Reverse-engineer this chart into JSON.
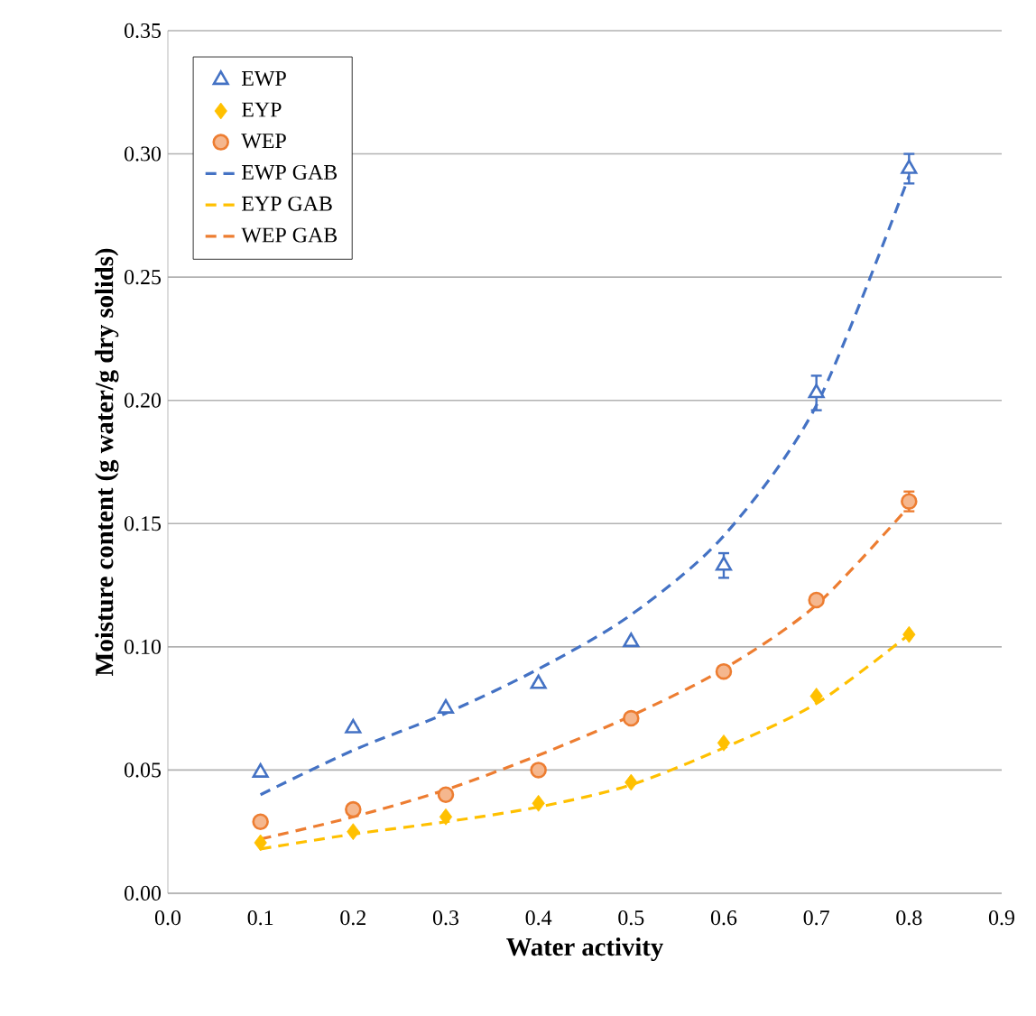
{
  "chart_data": {
    "type": "scatter",
    "xlabel": "Water activity",
    "ylabel": "Moisture content (g water/g dry solids)",
    "x": [
      0.1,
      0.2,
      0.3,
      0.4,
      0.5,
      0.6,
      0.7,
      0.8
    ],
    "xlim": [
      0,
      0.9
    ],
    "ylim": [
      0,
      0.35
    ],
    "xticks": [
      {
        "value": 0,
        "label": "0.0"
      },
      {
        "value": 0.1,
        "label": "0.1"
      },
      {
        "value": 0.2,
        "label": "0.2"
      },
      {
        "value": 0.3,
        "label": "0.3"
      },
      {
        "value": 0.4,
        "label": "0.4"
      },
      {
        "value": 0.5,
        "label": "0.5"
      },
      {
        "value": 0.6,
        "label": "0.6"
      },
      {
        "value": 0.7,
        "label": "0.7"
      },
      {
        "value": 0.8,
        "label": "0.8"
      },
      {
        "value": 0.9,
        "label": "0.9"
      }
    ],
    "yticks": [
      {
        "value": 0,
        "label": "0.00"
      },
      {
        "value": 0.05,
        "label": "0.05"
      },
      {
        "value": 0.1,
        "label": "0.10"
      },
      {
        "value": 0.15,
        "label": "0.15"
      },
      {
        "value": 0.2,
        "label": "0.20"
      },
      {
        "value": 0.25,
        "label": "0.25"
      },
      {
        "value": 0.3,
        "label": "0.30"
      },
      {
        "value": 0.35,
        "label": "0.35"
      }
    ],
    "grid": "y",
    "legend": "top left",
    "series": [
      {
        "name": "EWP",
        "marker": "triangle",
        "color": "#4472c4",
        "values": [
          0.049,
          0.067,
          0.075,
          0.085,
          0.102,
          0.133,
          0.203,
          0.294
        ],
        "errors": [
          null,
          null,
          null,
          null,
          null,
          0.005,
          0.007,
          0.006
        ]
      },
      {
        "name": "EYP",
        "marker": "diamond",
        "color": "#ffc000",
        "values": [
          0.0205,
          0.025,
          0.031,
          0.0365,
          0.045,
          0.061,
          0.08,
          0.105
        ]
      },
      {
        "name": "WEP",
        "marker": "circle",
        "color": "#ed7d31",
        "values": [
          0.029,
          0.034,
          0.04,
          0.05,
          0.071,
          0.09,
          0.119,
          0.159
        ],
        "errors": [
          null,
          null,
          null,
          null,
          null,
          null,
          null,
          0.004
        ]
      },
      {
        "name": "EWP GAB",
        "type": "line",
        "line_style": "dashed",
        "color": "#4472c4",
        "values": [
          0.04,
          0.058,
          0.073,
          0.091,
          0.113,
          0.145,
          0.198,
          0.291
        ]
      },
      {
        "name": "EYP GAB",
        "type": "line",
        "line_style": "dashed",
        "color": "#ffc000",
        "values": [
          0.018,
          0.024,
          0.029,
          0.035,
          0.044,
          0.059,
          0.077,
          0.105
        ]
      },
      {
        "name": "WEP GAB",
        "type": "line",
        "line_style": "dashed",
        "color": "#ed7d31",
        "values": [
          0.022,
          0.031,
          0.042,
          0.056,
          0.072,
          0.091,
          0.117,
          0.157
        ]
      }
    ]
  }
}
